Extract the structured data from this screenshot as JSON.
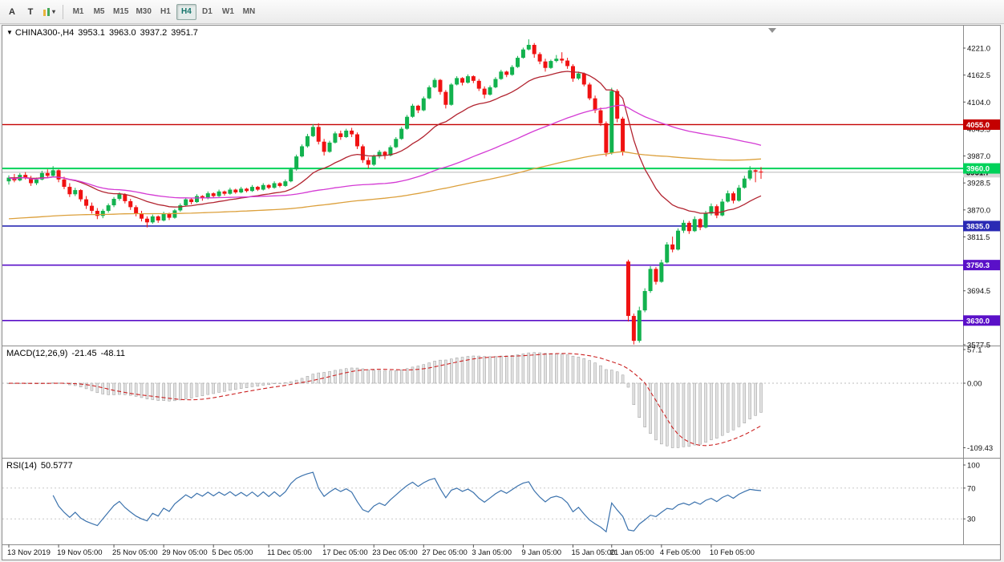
{
  "toolbar": {
    "tools": [
      {
        "label": "A"
      },
      {
        "label": "T"
      },
      {
        "label": "",
        "caret": "▾"
      }
    ],
    "timeframes": [
      "M1",
      "M5",
      "M15",
      "M30",
      "H1",
      "H4",
      "D1",
      "W1",
      "MN"
    ],
    "active_timeframe": "H4"
  },
  "chart_header": {
    "collapse_icon": "▼",
    "symbol_period": "CHINA300-,H4",
    "open": "3953.1",
    "high": "3963.0",
    "low": "3937.2",
    "close": "3951.7"
  },
  "panels": {
    "macd": {
      "name": "MACD(12,26,9)",
      "value_main": "-21.45",
      "value_signal": "-48.11"
    },
    "rsi": {
      "name": "RSI(14)",
      "value": "50.5777"
    }
  },
  "chart_data": {
    "type": "candlestick",
    "symbol": "CHINA300-",
    "timeframe": "H4",
    "last_ohlc": {
      "open": 3953.1,
      "high": 3963.0,
      "low": 3937.2,
      "close": 3951.7
    },
    "up_color": "#12b24e",
    "down_color": "#f01212",
    "price_axis_ticks": [
      "4221.0",
      "4162.5",
      "4104.0",
      "4045.5",
      "3987.0",
      "3928.5",
      "3870.0",
      "3811.5",
      "3753.0",
      "3694.5",
      "3636.0",
      "3577.5"
    ],
    "horizontal_levels": [
      {
        "label": "4055.0",
        "value": 4055.0,
        "color": "#c40000",
        "width": 1.3
      },
      {
        "label": "3960.0",
        "value": 3960.0,
        "color": "#00d25a",
        "width": 2
      },
      {
        "label": "3835.0",
        "value": 3835.0,
        "color": "#2a2ab4",
        "width": 1.6
      },
      {
        "label": "3750.3",
        "value": 3750.3,
        "color": "#5a10c8",
        "width": 1.6
      },
      {
        "label": "3630.0",
        "value": 3630.0,
        "color": "#5a10c8",
        "width": 1.6
      }
    ],
    "current_price": {
      "label": "3951.7",
      "value": 3951.7,
      "line_color": "#b8b8b8",
      "tag_bg": "#d8d8d8",
      "tag_fg": "#000000"
    },
    "time_labels": [
      {
        "label": "13 Nov 2019",
        "i": 0
      },
      {
        "label": "19 Nov 05:00",
        "i": 9
      },
      {
        "label": "25 Nov 05:00",
        "i": 19
      },
      {
        "label": "29 Nov 05:00",
        "i": 28
      },
      {
        "label": "5 Dec 05:00",
        "i": 37
      },
      {
        "label": "11 Dec 05:00",
        "i": 47
      },
      {
        "label": "17 Dec 05:00",
        "i": 57
      },
      {
        "label": "23 Dec 05:00",
        "i": 66
      },
      {
        "label": "27 Dec 05:00",
        "i": 75
      },
      {
        "label": "3 Jan 05:00",
        "i": 84
      },
      {
        "label": "9 Jan 05:00",
        "i": 93
      },
      {
        "label": "15 Jan 05:00",
        "i": 102
      },
      {
        "label": "21 Jan 05:00",
        "i": 109
      },
      {
        "label": "4 Feb 05:00",
        "i": 118
      },
      {
        "label": "10 Feb 05:00",
        "i": 127
      }
    ],
    "moving_averages": [
      {
        "name": "ma-fast-red",
        "type": "ema",
        "period": 20,
        "color": "#b22430",
        "width": 1.3
      },
      {
        "name": "ma-mid-magenta",
        "type": "sma",
        "period": 60,
        "color": "#d43ad4",
        "width": 1.3
      },
      {
        "name": "ma-slow-orange",
        "type": "sma",
        "period": 120,
        "seed": 3850,
        "color": "#dca03c",
        "width": 1.3
      }
    ],
    "macd": {
      "axis_labels": [
        "57.1",
        "0.00",
        "-109.43"
      ],
      "histogram_color": "#e2e2e2",
      "histogram_stroke": "#9a9a9a",
      "signal_color": "#cc2222"
    },
    "rsi": {
      "axis_labels": [
        "100",
        "70",
        "30"
      ],
      "levels": [
        70,
        30
      ],
      "line_color": "#3b72ad"
    },
    "candles": [
      [
        3932,
        3945,
        3925,
        3940
      ],
      [
        3940,
        3948,
        3930,
        3934
      ],
      [
        3934,
        3950,
        3932,
        3946
      ],
      [
        3946,
        3952,
        3936,
        3939
      ],
      [
        3939,
        3944,
        3922,
        3928
      ],
      [
        3928,
        3940,
        3924,
        3936
      ],
      [
        3936,
        3955,
        3934,
        3950
      ],
      [
        3950,
        3958,
        3940,
        3944
      ],
      [
        3944,
        3965,
        3942,
        3956
      ],
      [
        3956,
        3958,
        3930,
        3936
      ],
      [
        3936,
        3942,
        3915,
        3920
      ],
      [
        3920,
        3928,
        3898,
        3904
      ],
      [
        3904,
        3918,
        3900,
        3913
      ],
      [
        3913,
        3915,
        3888,
        3893
      ],
      [
        3893,
        3900,
        3872,
        3879
      ],
      [
        3879,
        3886,
        3862,
        3868
      ],
      [
        3868,
        3874,
        3850,
        3857
      ],
      [
        3857,
        3872,
        3852,
        3868
      ],
      [
        3868,
        3884,
        3864,
        3880
      ],
      [
        3880,
        3898,
        3876,
        3894
      ],
      [
        3894,
        3908,
        3890,
        3904
      ],
      [
        3904,
        3906,
        3884,
        3889
      ],
      [
        3889,
        3894,
        3870,
        3876
      ],
      [
        3876,
        3880,
        3856,
        3862
      ],
      [
        3862,
        3868,
        3845,
        3851
      ],
      [
        3851,
        3856,
        3832,
        3843
      ],
      [
        3843,
        3860,
        3840,
        3856
      ],
      [
        3856,
        3858,
        3842,
        3847
      ],
      [
        3847,
        3866,
        3845,
        3862
      ],
      [
        3862,
        3864,
        3848,
        3853
      ],
      [
        3853,
        3872,
        3851,
        3869
      ],
      [
        3869,
        3884,
        3866,
        3880
      ],
      [
        3880,
        3896,
        3878,
        3893
      ],
      [
        3893,
        3895,
        3882,
        3887
      ],
      [
        3887,
        3904,
        3885,
        3900
      ],
      [
        3900,
        3902,
        3890,
        3895
      ],
      [
        3895,
        3910,
        3893,
        3906
      ],
      [
        3906,
        3908,
        3896,
        3900
      ],
      [
        3900,
        3914,
        3898,
        3910
      ],
      [
        3910,
        3912,
        3901,
        3905
      ],
      [
        3905,
        3918,
        3903,
        3914
      ],
      [
        3914,
        3916,
        3905,
        3908
      ],
      [
        3908,
        3920,
        3906,
        3916
      ],
      [
        3916,
        3918,
        3908,
        3911
      ],
      [
        3911,
        3924,
        3909,
        3920
      ],
      [
        3920,
        3922,
        3911,
        3914
      ],
      [
        3914,
        3928,
        3912,
        3924
      ],
      [
        3924,
        3926,
        3915,
        3918
      ],
      [
        3918,
        3932,
        3916,
        3928
      ],
      [
        3928,
        3930,
        3919,
        3922
      ],
      [
        3922,
        3936,
        3920,
        3932
      ],
      [
        3932,
        3962,
        3930,
        3958
      ],
      [
        3958,
        3990,
        3955,
        3986
      ],
      [
        3986,
        4012,
        3984,
        4008
      ],
      [
        4008,
        4035,
        4005,
        4030
      ],
      [
        4030,
        4056,
        4028,
        4050
      ],
      [
        4050,
        4058,
        4012,
        4018
      ],
      [
        4018,
        4024,
        3988,
        3996
      ],
      [
        3996,
        4020,
        3994,
        4016
      ],
      [
        4016,
        4040,
        4014,
        4036
      ],
      [
        4036,
        4042,
        4022,
        4028
      ],
      [
        4028,
        4046,
        4026,
        4042
      ],
      [
        4042,
        4048,
        4028,
        4034
      ],
      [
        4034,
        4038,
        4002,
        4008
      ],
      [
        4008,
        4012,
        3972,
        3978
      ],
      [
        3978,
        3984,
        3960,
        3968
      ],
      [
        3968,
        3990,
        3965,
        3986
      ],
      [
        3986,
        4000,
        3982,
        3996
      ],
      [
        3996,
        3998,
        3980,
        3988
      ],
      [
        3988,
        4010,
        3986,
        4006
      ],
      [
        4006,
        4028,
        4004,
        4024
      ],
      [
        4024,
        4050,
        4022,
        4046
      ],
      [
        4046,
        4076,
        4044,
        4072
      ],
      [
        4072,
        4100,
        4070,
        4096
      ],
      [
        4096,
        4098,
        4080,
        4086
      ],
      [
        4086,
        4116,
        4084,
        4112
      ],
      [
        4112,
        4140,
        4110,
        4136
      ],
      [
        4136,
        4156,
        4134,
        4152
      ],
      [
        4152,
        4154,
        4120,
        4126
      ],
      [
        4126,
        4130,
        4090,
        4098
      ],
      [
        4098,
        4145,
        4096,
        4142
      ],
      [
        4142,
        4160,
        4140,
        4156
      ],
      [
        4156,
        4158,
        4140,
        4146
      ],
      [
        4146,
        4164,
        4144,
        4160
      ],
      [
        4160,
        4162,
        4145,
        4150
      ],
      [
        4150,
        4154,
        4128,
        4133
      ],
      [
        4133,
        4138,
        4112,
        4120
      ],
      [
        4120,
        4140,
        4118,
        4136
      ],
      [
        4136,
        4158,
        4134,
        4154
      ],
      [
        4154,
        4174,
        4152,
        4170
      ],
      [
        4170,
        4172,
        4158,
        4163
      ],
      [
        4163,
        4184,
        4161,
        4180
      ],
      [
        4180,
        4204,
        4178,
        4200
      ],
      [
        4200,
        4222,
        4198,
        4218
      ],
      [
        4218,
        4240,
        4216,
        4228
      ],
      [
        4228,
        4232,
        4200,
        4208
      ],
      [
        4208,
        4212,
        4186,
        4192
      ],
      [
        4192,
        4198,
        4170,
        4178
      ],
      [
        4178,
        4196,
        4176,
        4193
      ],
      [
        4193,
        4206,
        4190,
        4198
      ],
      [
        4198,
        4212,
        4188,
        4194
      ],
      [
        4194,
        4200,
        4176,
        4182
      ],
      [
        4182,
        4186,
        4148,
        4155
      ],
      [
        4155,
        4170,
        4152,
        4166
      ],
      [
        4166,
        4168,
        4138,
        4142
      ],
      [
        4142,
        4146,
        4108,
        4112
      ],
      [
        4112,
        4118,
        4080,
        4086
      ],
      [
        4086,
        4092,
        4052,
        4058
      ],
      [
        4058,
        4062,
        3986,
        3994
      ],
      [
        3994,
        4135,
        3990,
        4128
      ],
      [
        4128,
        4132,
        4060,
        4068
      ],
      [
        4068,
        4072,
        3988,
        3996
      ],
      [
        3758,
        3762,
        3628,
        3640
      ],
      [
        3640,
        3645,
        3578,
        3586
      ],
      [
        3586,
        3660,
        3582,
        3652
      ],
      [
        3652,
        3700,
        3648,
        3694
      ],
      [
        3694,
        3748,
        3690,
        3742
      ],
      [
        3742,
        3746,
        3708,
        3714
      ],
      [
        3714,
        3762,
        3712,
        3756
      ],
      [
        3756,
        3800,
        3754,
        3795
      ],
      [
        3795,
        3812,
        3778,
        3784
      ],
      [
        3784,
        3830,
        3782,
        3825
      ],
      [
        3825,
        3848,
        3820,
        3842
      ],
      [
        3842,
        3846,
        3818,
        3824
      ],
      [
        3824,
        3856,
        3822,
        3850
      ],
      [
        3850,
        3852,
        3826,
        3832
      ],
      [
        3832,
        3868,
        3830,
        3862
      ],
      [
        3862,
        3884,
        3858,
        3878
      ],
      [
        3878,
        3882,
        3852,
        3858
      ],
      [
        3858,
        3894,
        3856,
        3888
      ],
      [
        3888,
        3912,
        3886,
        3906
      ],
      [
        3906,
        3910,
        3884,
        3890
      ],
      [
        3890,
        3924,
        3888,
        3918
      ],
      [
        3918,
        3944,
        3916,
        3938
      ],
      [
        3938,
        3965,
        3934,
        3956
      ],
      [
        3956,
        3958,
        3930,
        3953.1
      ],
      [
        3953.1,
        3963,
        3937.2,
        3951.7
      ]
    ]
  }
}
